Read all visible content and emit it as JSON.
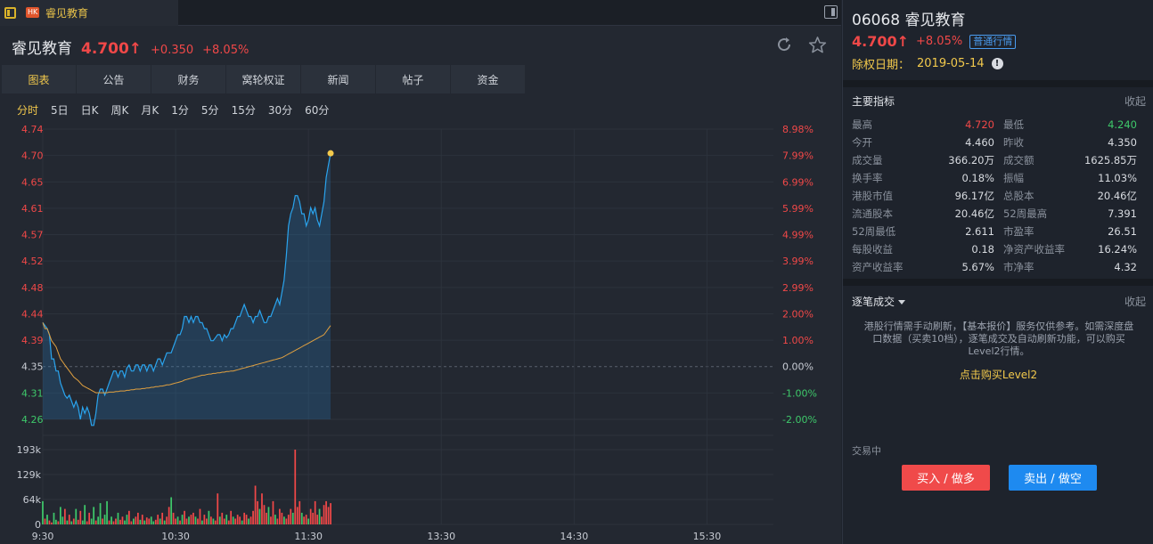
{
  "tab": {
    "badge": "HK",
    "title": "睿见教育"
  },
  "quote": {
    "name": "睿见教育",
    "price": "4.700",
    "change": "+0.350",
    "pct": "+8.05%"
  },
  "main_tabs": [
    "图表",
    "公告",
    "财务",
    "窝轮权证",
    "新闻",
    "帖子",
    "资金"
  ],
  "period_tabs": [
    "分时",
    "5日",
    "日K",
    "周K",
    "月K",
    "1分",
    "5分",
    "15分",
    "30分",
    "60分"
  ],
  "right": {
    "title": "06068 睿见教育",
    "price": "4.700",
    "pct": "+8.05%",
    "badge": "普通行情",
    "exdiv_label": "除权日期：",
    "exdiv_date": "2019-05-14",
    "info_glyph": "!",
    "key_title": "主要指标",
    "collapse": "收起",
    "tick_title": "逐笔成交",
    "notice": "港股行情需手动刷新，【基本报价】服务仅供参考。如需深度盘口数据（买卖10档），逐笔成交及自动刷新功能，可以购买Level2行情。",
    "buy_l2": "点击购买Level2",
    "trading": "交易中",
    "buy_btn": "买入 / 做多",
    "sell_btn": "卖出 / 做空"
  },
  "stats": [
    {
      "l1": "最高",
      "v1": "4.720",
      "c1": "red",
      "l2": "最低",
      "v2": "4.240",
      "c2": "green"
    },
    {
      "l1": "今开",
      "v1": "4.460",
      "c1": "",
      "l2": "昨收",
      "v2": "4.350",
      "c2": ""
    },
    {
      "l1": "成交量",
      "v1": "366.20万",
      "c1": "",
      "l2": "成交额",
      "v2": "1625.85万",
      "c2": ""
    },
    {
      "l1": "换手率",
      "v1": "0.18%",
      "c1": "",
      "l2": "振幅",
      "v2": "11.03%",
      "c2": ""
    },
    {
      "l1": "港股市值",
      "v1": "96.17亿",
      "c1": "",
      "l2": "总股本",
      "v2": "20.46亿",
      "c2": ""
    },
    {
      "l1": "流通股本",
      "v1": "20.46亿",
      "c1": "",
      "l2": "52周最高",
      "v2": "7.391",
      "c2": ""
    },
    {
      "l1": "52周最低",
      "v1": "2.611",
      "c1": "",
      "l2": "市盈率",
      "v2": "26.51",
      "c2": ""
    },
    {
      "l1": "每股收益",
      "v1": "0.18",
      "c1": "",
      "l2": "净资产收益率",
      "v2": "16.24%",
      "c2": ""
    },
    {
      "l1": "资产收益率",
      "v1": "5.67%",
      "c1": "",
      "l2": "市净率",
      "v2": "4.32",
      "c2": ""
    }
  ],
  "chart_data": {
    "type": "line",
    "prev_close": 4.35,
    "price_ticks_left": [
      "4.74",
      "4.70",
      "4.65",
      "4.61",
      "4.57",
      "4.52",
      "4.48",
      "4.44",
      "4.39",
      "4.35",
      "4.31",
      "4.26"
    ],
    "pct_ticks_right": [
      "8.98%",
      "7.99%",
      "6.99%",
      "5.99%",
      "4.99%",
      "3.99%",
      "2.99%",
      "2.00%",
      "1.00%",
      "0.00%",
      "-1.00%",
      "-2.00%"
    ],
    "volume_ticks": [
      "193k",
      "129k",
      "64k",
      "0"
    ],
    "time_ticks": [
      "9:30",
      "10:30",
      "11:30",
      "13:30",
      "14:30",
      "15:30"
    ],
    "ylim": [
      4.26,
      4.74
    ],
    "vol_max": 193,
    "total_minutes": 330,
    "price": [
      4.42,
      4.415,
      4.41,
      4.4,
      4.36,
      4.36,
      4.34,
      4.34,
      4.32,
      4.31,
      4.3,
      4.295,
      4.3,
      4.29,
      4.28,
      4.29,
      4.28,
      4.26,
      4.28,
      4.27,
      4.28,
      4.27,
      4.25,
      4.25,
      4.27,
      4.3,
      4.31,
      4.31,
      4.3,
      4.31,
      4.32,
      4.33,
      4.34,
      4.34,
      4.33,
      4.34,
      4.34,
      4.33,
      4.345,
      4.35,
      4.34,
      4.34,
      4.35,
      4.35,
      4.34,
      4.35,
      4.35,
      4.34,
      4.35,
      4.35,
      4.34,
      4.35,
      4.36,
      4.36,
      4.35,
      4.36,
      4.37,
      4.37,
      4.37,
      4.38,
      4.39,
      4.4,
      4.4,
      4.41,
      4.43,
      4.43,
      4.42,
      4.43,
      4.42,
      4.43,
      4.43,
      4.42,
      4.42,
      4.41,
      4.41,
      4.4,
      4.39,
      4.39,
      4.395,
      4.4,
      4.4,
      4.39,
      4.4,
      4.395,
      4.4,
      4.41,
      4.41,
      4.42,
      4.43,
      4.43,
      4.44,
      4.45,
      4.44,
      4.43,
      4.43,
      4.42,
      4.43,
      4.43,
      4.44,
      4.43,
      4.42,
      4.42,
      4.43,
      4.43,
      4.44,
      4.45,
      4.46,
      4.45,
      4.47,
      4.49,
      4.53,
      4.58,
      4.6,
      4.61,
      4.63,
      4.63,
      4.62,
      4.6,
      4.6,
      4.58,
      4.59,
      4.61,
      4.6,
      4.61,
      4.59,
      4.58,
      4.6,
      4.62,
      4.66,
      4.68,
      4.7
    ],
    "avg": [
      4.42,
      4.41,
      4.41,
      4.4,
      4.39,
      4.385,
      4.38,
      4.37,
      4.36,
      4.355,
      4.35,
      4.345,
      4.34,
      4.335,
      4.33,
      4.327,
      4.324,
      4.32,
      4.316,
      4.314,
      4.312,
      4.31,
      4.308,
      4.306,
      4.304,
      4.304,
      4.304,
      4.304,
      4.304,
      4.304,
      4.305,
      4.305,
      4.305,
      4.306,
      4.306,
      4.307,
      4.307,
      4.307,
      4.308,
      4.308,
      4.309,
      4.309,
      4.31,
      4.31,
      4.31,
      4.311,
      4.311,
      4.312,
      4.312,
      4.313,
      4.313,
      4.314,
      4.314,
      4.315,
      4.315,
      4.316,
      4.317,
      4.317,
      4.318,
      4.319,
      4.32,
      4.321,
      4.322,
      4.323,
      4.325,
      4.326,
      4.327,
      4.328,
      4.329,
      4.33,
      4.331,
      4.332,
      4.333,
      4.333,
      4.334,
      4.335,
      4.335,
      4.336,
      4.336,
      4.337,
      4.337,
      4.338,
      4.338,
      4.339,
      4.339,
      4.34,
      4.34,
      4.341,
      4.342,
      4.343,
      4.344,
      4.345,
      4.346,
      4.347,
      4.348,
      4.349,
      4.35,
      4.351,
      4.352,
      4.353,
      4.354,
      4.355,
      4.356,
      4.357,
      4.358,
      4.359,
      4.36,
      4.361,
      4.362,
      4.364,
      4.366,
      4.368,
      4.37,
      4.372,
      4.374,
      4.376,
      4.378,
      4.38,
      4.382,
      4.384,
      4.386,
      4.388,
      4.39,
      4.392,
      4.394,
      4.396,
      4.398,
      4.4,
      4.405,
      4.41,
      4.415
    ],
    "volume": [
      60,
      15,
      25,
      10,
      5,
      30,
      12,
      8,
      45,
      20,
      40,
      10,
      25,
      8,
      15,
      40,
      12,
      35,
      10,
      50,
      8,
      30,
      15,
      45,
      10,
      20,
      55,
      15,
      25,
      60,
      10,
      20,
      8,
      15,
      30,
      12,
      20,
      10,
      25,
      35,
      8,
      15,
      20,
      30,
      12,
      25,
      10,
      18,
      15,
      20,
      8,
      12,
      25,
      15,
      30,
      10,
      20,
      45,
      70,
      30,
      15,
      20,
      10,
      25,
      35,
      15,
      20,
      25,
      30,
      20,
      15,
      40,
      10,
      25,
      15,
      35,
      20,
      15,
      10,
      80,
      20,
      30,
      15,
      25,
      10,
      35,
      20,
      15,
      25,
      20,
      10,
      30,
      25,
      15,
      20,
      35,
      100,
      60,
      40,
      80,
      50,
      30,
      45,
      20,
      60,
      25,
      15,
      40,
      30,
      20,
      15,
      25,
      40,
      30,
      193,
      45,
      60,
      30,
      20,
      25,
      15,
      40,
      30,
      60,
      25,
      40,
      20,
      50,
      60,
      45,
      55
    ],
    "volume_up": [
      1,
      0,
      1,
      0,
      0,
      1,
      1,
      0,
      1,
      1,
      0,
      1,
      0,
      1,
      0,
      1,
      0,
      0,
      1,
      1,
      0,
      0,
      1,
      1,
      0,
      1,
      1,
      0,
      1,
      1,
      0,
      1,
      0,
      0,
      1,
      0,
      0,
      1,
      1,
      0,
      0,
      1,
      0,
      0,
      1,
      0,
      1,
      0,
      0,
      1,
      1,
      0,
      0,
      1,
      0,
      1,
      0,
      0,
      1,
      0,
      0,
      1,
      0,
      1,
      0,
      0,
      1,
      0,
      0,
      1,
      0,
      0,
      1,
      0,
      0,
      1,
      0,
      1,
      0,
      0,
      1,
      0,
      0,
      1,
      0,
      0,
      1,
      0,
      0,
      0,
      1,
      0,
      0,
      1,
      0,
      0,
      0,
      0,
      1,
      0,
      0,
      0,
      1,
      0,
      0,
      1,
      0,
      0,
      0,
      1,
      0,
      0,
      0,
      1,
      0,
      0,
      0,
      1,
      0,
      0,
      1,
      0,
      0,
      0,
      0,
      1,
      0,
      0,
      0,
      0,
      0
    ]
  }
}
